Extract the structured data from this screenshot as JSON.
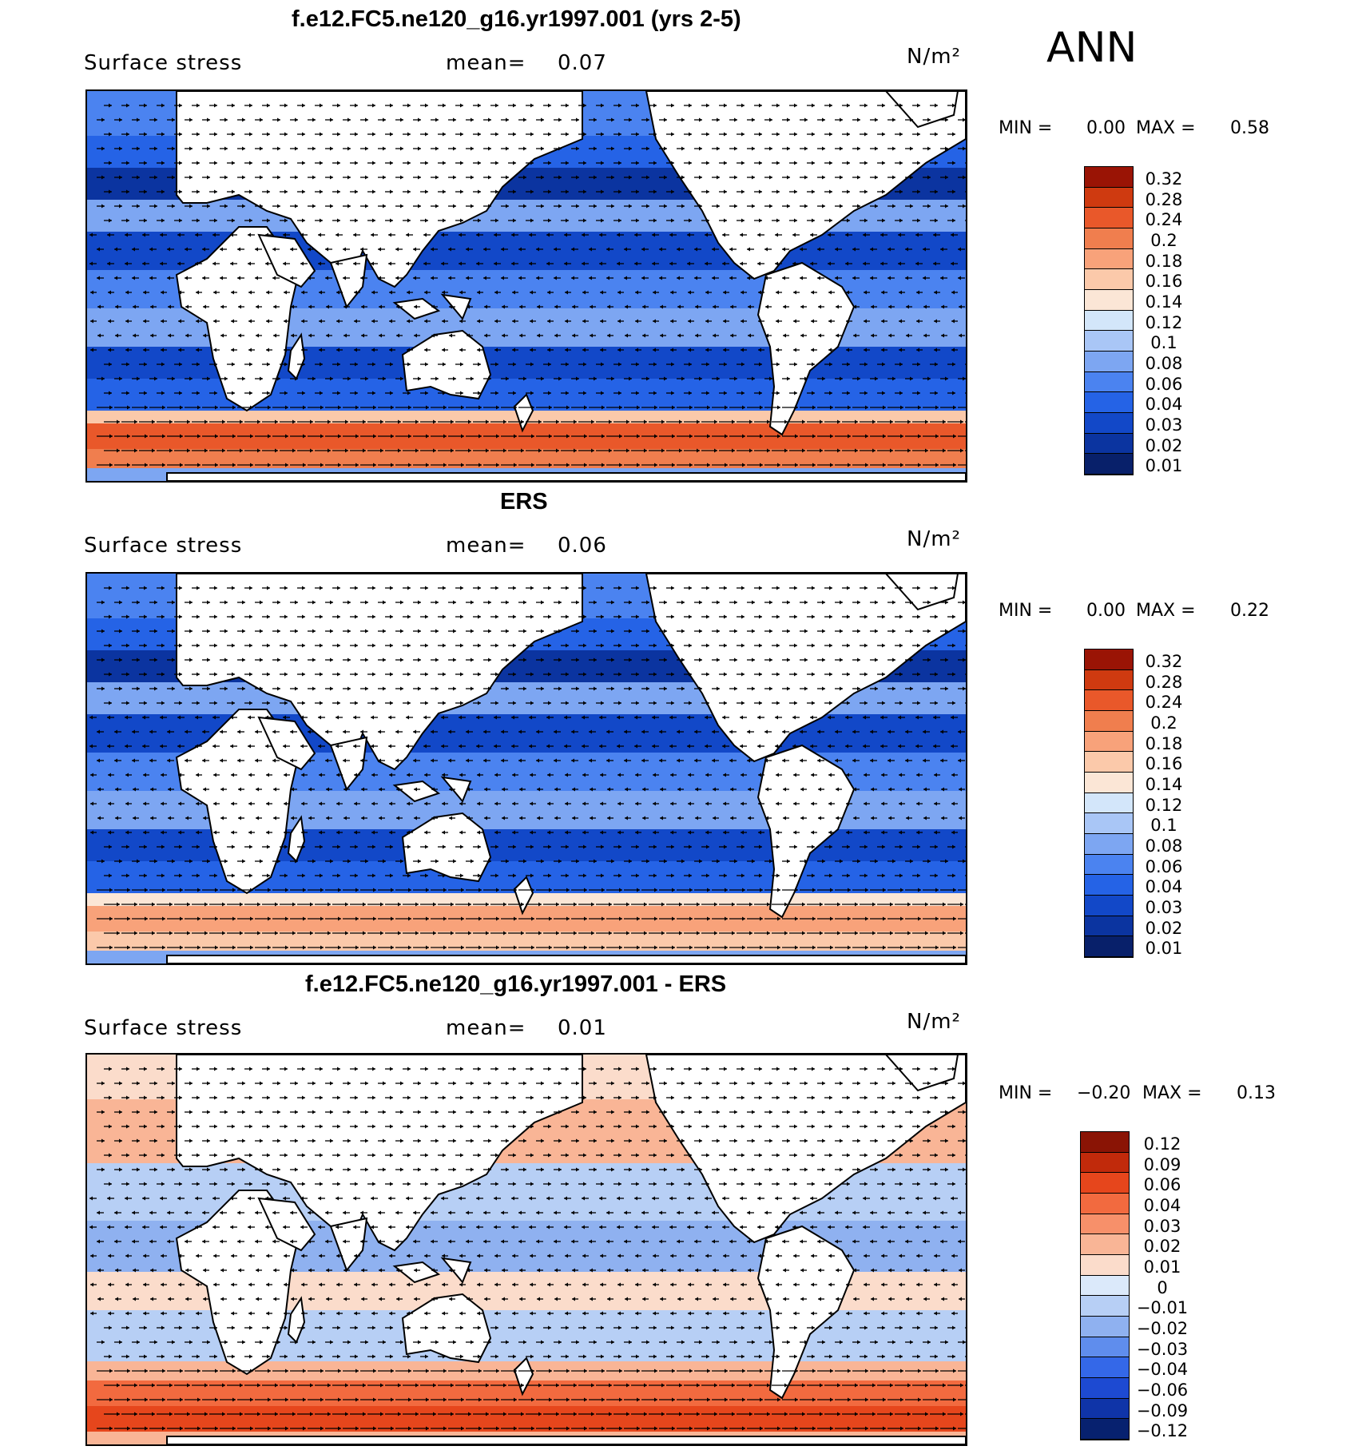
{
  "season": "ANN",
  "colors": {
    "c01": "#08206a",
    "c02": "#0b34a0",
    "c03": "#1248c8",
    "c04": "#2563e6",
    "c06": "#4b83f0",
    "c08": "#7da6f2",
    "c10": "#a9c6f6",
    "c12": "#d3e6fa",
    "c14": "#fbe6d6",
    "c16": "#fbc9aa",
    "c18": "#f8a27a",
    "c20": "#f07e4e",
    "c24": "#e9582a",
    "c28": "#cf3a10",
    "c32": "#9a1405",
    "land": "#ffffff",
    "coast": "#000000",
    "arrow": "#000000"
  },
  "panels": [
    {
      "title": "f.e12.FC5.ne120_g16.yr1997.001 (yrs 2-5)",
      "variable": "Surface stress",
      "mean_label": "mean=",
      "mean_value": "0.07",
      "units": "N/m²",
      "min_label": "MIN =",
      "min_value": "0.00",
      "max_label": "MAX =",
      "max_value": "0.58",
      "colorbar": [
        "0.32",
        "0.28",
        "0.24",
        "0.2",
        "0.18",
        "0.16",
        "0.14",
        "0.12",
        "0.1",
        "0.08",
        "0.06",
        "0.04",
        "0.03",
        "0.02",
        "0.01"
      ]
    },
    {
      "title": "ERS",
      "variable": "Surface stress",
      "mean_label": "mean=",
      "mean_value": "0.06",
      "units": "N/m²",
      "min_label": "MIN =",
      "min_value": "0.00",
      "max_label": "MAX =",
      "max_value": "0.22",
      "colorbar": [
        "0.32",
        "0.28",
        "0.24",
        "0.2",
        "0.18",
        "0.16",
        "0.14",
        "0.12",
        "0.1",
        "0.08",
        "0.06",
        "0.04",
        "0.03",
        "0.02",
        "0.01"
      ]
    },
    {
      "title": "f.e12.FC5.ne120_g16.yr1997.001 - ERS",
      "variable": "Surface stress",
      "mean_label": "mean=",
      "mean_value": "0.01",
      "units": "N/m²",
      "min_label": "MIN =",
      "min_value": "−0.20",
      "max_label": "MAX =",
      "max_value": "0.13",
      "colorbar": [
        "0.12",
        "0.09",
        "0.06",
        "0.04",
        "0.03",
        "0.02",
        "0.01",
        "0",
        "−0.01",
        "−0.02",
        "−0.03",
        "−0.04",
        "−0.06",
        "−0.09",
        "−0.12"
      ]
    }
  ]
}
